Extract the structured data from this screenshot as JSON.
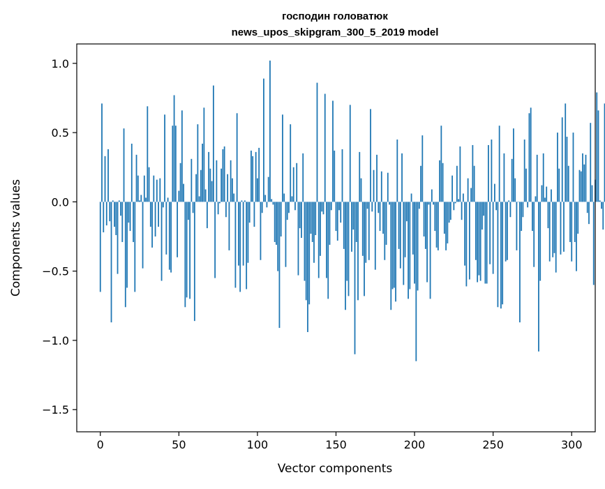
{
  "chart_data": {
    "type": "bar",
    "title": "господин головатюк",
    "subtitle": "news_upos_skipgram_300_5_2019 model",
    "xlabel": "Vector components",
    "ylabel": "Components values",
    "xlim": [
      -15,
      315
    ],
    "ylim": [
      -1.66,
      1.14
    ],
    "xticks": [
      0,
      50,
      100,
      150,
      200,
      250,
      300
    ],
    "xtick_labels": [
      "0",
      "50",
      "100",
      "150",
      "200",
      "250",
      "300"
    ],
    "yticks": [
      1.0,
      0.5,
      0.0,
      -0.5,
      -1.0,
      -1.5
    ],
    "ytick_labels": [
      "1.0",
      "0.5",
      "0.0",
      "−0.5",
      "−1.0",
      "−1.5"
    ],
    "grid": false,
    "bar_color": "#1f77b4",
    "values": [
      -0.65,
      0.71,
      -0.22,
      0.33,
      -0.17,
      0.38,
      -0.14,
      -0.87,
      0.01,
      -0.18,
      -0.24,
      -0.52,
      0.01,
      -0.1,
      -0.29,
      0.53,
      -0.76,
      -0.62,
      -0.15,
      -0.21,
      0.42,
      -0.29,
      -0.65,
      0.34,
      0.19,
      0.01,
      0.05,
      -0.48,
      0.19,
      0.03,
      0.69,
      0.25,
      -0.18,
      -0.33,
      0.19,
      -0.25,
      0.16,
      -0.18,
      0.17,
      -0.57,
      -0.04,
      0.63,
      -0.38,
      0.03,
      -0.49,
      -0.51,
      0.55,
      0.77,
      0.55,
      -0.4,
      0.08,
      0.28,
      0.66,
      0.13,
      -0.76,
      -0.69,
      -0.13,
      -0.7,
      0.31,
      -0.08,
      -0.86,
      0.2,
      0.56,
      0.04,
      0.23,
      0.42,
      0.68,
      0.09,
      -0.19,
      0.36,
      0.24,
      0.15,
      0.84,
      -0.55,
      0.3,
      -0.09,
      -0.01,
      0.24,
      0.38,
      0.4,
      -0.11,
      0.2,
      -0.35,
      0.3,
      0.17,
      0.06,
      -0.62,
      0.64,
      -0.46,
      -0.65,
      0.01,
      -0.46,
      0.01,
      -0.63,
      -0.44,
      -0.15,
      0.37,
      0.33,
      -0.18,
      0.36,
      0.17,
      0.39,
      -0.42,
      -0.08,
      0.89,
      0.05,
      -0.04,
      0.18,
      1.02,
      0.02,
      -0.02,
      -0.29,
      -0.31,
      -0.5,
      -0.91,
      -0.25,
      0.63,
      0.06,
      -0.47,
      -0.13,
      -0.08,
      0.56,
      0.04,
      0.25,
      -0.06,
      0.28,
      -0.53,
      -0.19,
      -0.26,
      0.35,
      -0.57,
      -0.71,
      -0.94,
      -0.74,
      -0.23,
      -0.29,
      -0.44,
      -0.24,
      0.86,
      -0.55,
      -0.39,
      -0.07,
      -0.09,
      0.78,
      -0.55,
      -0.7,
      -0.31,
      -0.06,
      0.73,
      0.37,
      -0.21,
      -0.28,
      -0.06,
      -0.15,
      0.38,
      -0.34,
      -0.78,
      -0.57,
      -0.68,
      0.7,
      -0.36,
      -0.2,
      -1.1,
      -0.29,
      -0.71,
      0.36,
      0.17,
      -0.39,
      -0.68,
      -0.44,
      -0.05,
      -0.42,
      0.67,
      -0.07,
      0.23,
      -0.49,
      0.34,
      -0.08,
      -0.21,
      0.22,
      -0.23,
      -0.42,
      -0.31,
      0.21,
      -0.02,
      -0.78,
      -0.63,
      -0.62,
      -0.72,
      0.45,
      -0.34,
      -0.48,
      0.35,
      -0.6,
      -0.4,
      -0.14,
      -0.7,
      -0.63,
      0.06,
      -0.38,
      -0.59,
      -1.15,
      -0.64,
      -0.05,
      0.26,
      0.48,
      -0.25,
      -0.34,
      -0.58,
      -0.02,
      -0.7,
      0.09,
      -0.02,
      -0.21,
      -0.33,
      -0.35,
      0.3,
      0.55,
      0.28,
      -0.23,
      -0.35,
      -0.3,
      -0.15,
      -0.13,
      0.19,
      -0.06,
      -0.01,
      0.26,
      0.02,
      0.4,
      -0.13,
      0.06,
      -0.46,
      -0.61,
      0.17,
      -0.56,
      0.1,
      0.41,
      0.26,
      -0.42,
      -0.58,
      -0.53,
      -0.57,
      -0.2,
      -0.1,
      -0.59,
      -0.59,
      0.41,
      -0.45,
      0.45,
      -0.52,
      0.13,
      -0.06,
      -0.76,
      0.55,
      -0.77,
      -0.74,
      0.35,
      -0.43,
      -0.42,
      0.01,
      -0.11,
      0.31,
      0.53,
      0.17,
      -0.35,
      0.0,
      -0.87,
      -0.21,
      -0.11,
      0.45,
      0.24,
      -0.04,
      0.64,
      0.68,
      -0.21,
      -0.47,
      0.04,
      0.34,
      -1.08,
      -0.57,
      0.12,
      0.35,
      0.03,
      0.11,
      -0.19,
      -0.43,
      0.09,
      -0.4,
      -0.37,
      -0.51,
      0.5,
      0.24,
      -0.38,
      0.61,
      -0.36,
      0.71,
      0.47,
      0.26,
      -0.29,
      -0.43,
      0.5,
      -0.29,
      -0.5,
      -0.23,
      0.23,
      0.22,
      0.35,
      0.27,
      0.34,
      -0.08,
      -0.16,
      0.57,
      0.12,
      -0.6,
      0.16,
      0.79,
      0.66,
      0.01,
      -0.05,
      -0.2,
      0.71
    ]
  }
}
